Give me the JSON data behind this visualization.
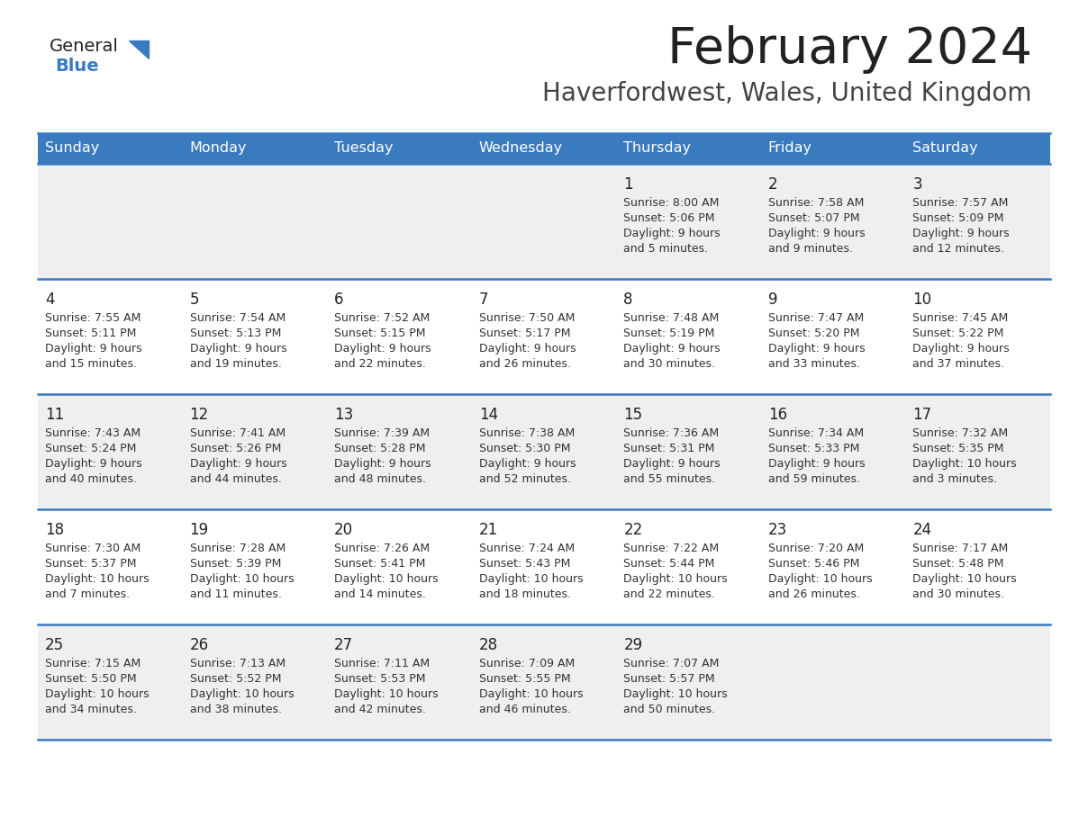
{
  "title": "February 2024",
  "subtitle": "Haverfordwest, Wales, United Kingdom",
  "days_of_week": [
    "Sunday",
    "Monday",
    "Tuesday",
    "Wednesday",
    "Thursday",
    "Friday",
    "Saturday"
  ],
  "header_bg": "#3a7bbf",
  "header_text": "#ffffff",
  "row_bg_odd": "#efefef",
  "row_bg_even": "#ffffff",
  "cell_text": "#333333",
  "day_num_color": "#222222",
  "separator_color": "#3a7bbf",
  "logo_general_color": "#222222",
  "logo_blue_color": "#3a7bbf",
  "title_color": "#222222",
  "subtitle_color": "#444444",
  "calendar_data": [
    [
      {
        "day": null,
        "sunrise": null,
        "sunset": null,
        "daylight": null
      },
      {
        "day": null,
        "sunrise": null,
        "sunset": null,
        "daylight": null
      },
      {
        "day": null,
        "sunrise": null,
        "sunset": null,
        "daylight": null
      },
      {
        "day": null,
        "sunrise": null,
        "sunset": null,
        "daylight": null
      },
      {
        "day": "1",
        "sunrise": "8:00 AM",
        "sunset": "5:06 PM",
        "daylight": "9 hours",
        "daylight2": "and 5 minutes."
      },
      {
        "day": "2",
        "sunrise": "7:58 AM",
        "sunset": "5:07 PM",
        "daylight": "9 hours",
        "daylight2": "and 9 minutes."
      },
      {
        "day": "3",
        "sunrise": "7:57 AM",
        "sunset": "5:09 PM",
        "daylight": "9 hours",
        "daylight2": "and 12 minutes."
      }
    ],
    [
      {
        "day": "4",
        "sunrise": "7:55 AM",
        "sunset": "5:11 PM",
        "daylight": "9 hours",
        "daylight2": "and 15 minutes."
      },
      {
        "day": "5",
        "sunrise": "7:54 AM",
        "sunset": "5:13 PM",
        "daylight": "9 hours",
        "daylight2": "and 19 minutes."
      },
      {
        "day": "6",
        "sunrise": "7:52 AM",
        "sunset": "5:15 PM",
        "daylight": "9 hours",
        "daylight2": "and 22 minutes."
      },
      {
        "day": "7",
        "sunrise": "7:50 AM",
        "sunset": "5:17 PM",
        "daylight": "9 hours",
        "daylight2": "and 26 minutes."
      },
      {
        "day": "8",
        "sunrise": "7:48 AM",
        "sunset": "5:19 PM",
        "daylight": "9 hours",
        "daylight2": "and 30 minutes."
      },
      {
        "day": "9",
        "sunrise": "7:47 AM",
        "sunset": "5:20 PM",
        "daylight": "9 hours",
        "daylight2": "and 33 minutes."
      },
      {
        "day": "10",
        "sunrise": "7:45 AM",
        "sunset": "5:22 PM",
        "daylight": "9 hours",
        "daylight2": "and 37 minutes."
      }
    ],
    [
      {
        "day": "11",
        "sunrise": "7:43 AM",
        "sunset": "5:24 PM",
        "daylight": "9 hours",
        "daylight2": "and 40 minutes."
      },
      {
        "day": "12",
        "sunrise": "7:41 AM",
        "sunset": "5:26 PM",
        "daylight": "9 hours",
        "daylight2": "and 44 minutes."
      },
      {
        "day": "13",
        "sunrise": "7:39 AM",
        "sunset": "5:28 PM",
        "daylight": "9 hours",
        "daylight2": "and 48 minutes."
      },
      {
        "day": "14",
        "sunrise": "7:38 AM",
        "sunset": "5:30 PM",
        "daylight": "9 hours",
        "daylight2": "and 52 minutes."
      },
      {
        "day": "15",
        "sunrise": "7:36 AM",
        "sunset": "5:31 PM",
        "daylight": "9 hours",
        "daylight2": "and 55 minutes."
      },
      {
        "day": "16",
        "sunrise": "7:34 AM",
        "sunset": "5:33 PM",
        "daylight": "9 hours",
        "daylight2": "and 59 minutes."
      },
      {
        "day": "17",
        "sunrise": "7:32 AM",
        "sunset": "5:35 PM",
        "daylight": "10 hours",
        "daylight2": "and 3 minutes."
      }
    ],
    [
      {
        "day": "18",
        "sunrise": "7:30 AM",
        "sunset": "5:37 PM",
        "daylight": "10 hours",
        "daylight2": "and 7 minutes."
      },
      {
        "day": "19",
        "sunrise": "7:28 AM",
        "sunset": "5:39 PM",
        "daylight": "10 hours",
        "daylight2": "and 11 minutes."
      },
      {
        "day": "20",
        "sunrise": "7:26 AM",
        "sunset": "5:41 PM",
        "daylight": "10 hours",
        "daylight2": "and 14 minutes."
      },
      {
        "day": "21",
        "sunrise": "7:24 AM",
        "sunset": "5:43 PM",
        "daylight": "10 hours",
        "daylight2": "and 18 minutes."
      },
      {
        "day": "22",
        "sunrise": "7:22 AM",
        "sunset": "5:44 PM",
        "daylight": "10 hours",
        "daylight2": "and 22 minutes."
      },
      {
        "day": "23",
        "sunrise": "7:20 AM",
        "sunset": "5:46 PM",
        "daylight": "10 hours",
        "daylight2": "and 26 minutes."
      },
      {
        "day": "24",
        "sunrise": "7:17 AM",
        "sunset": "5:48 PM",
        "daylight": "10 hours",
        "daylight2": "and 30 minutes."
      }
    ],
    [
      {
        "day": "25",
        "sunrise": "7:15 AM",
        "sunset": "5:50 PM",
        "daylight": "10 hours",
        "daylight2": "and 34 minutes."
      },
      {
        "day": "26",
        "sunrise": "7:13 AM",
        "sunset": "5:52 PM",
        "daylight": "10 hours",
        "daylight2": "and 38 minutes."
      },
      {
        "day": "27",
        "sunrise": "7:11 AM",
        "sunset": "5:53 PM",
        "daylight": "10 hours",
        "daylight2": "and 42 minutes."
      },
      {
        "day": "28",
        "sunrise": "7:09 AM",
        "sunset": "5:55 PM",
        "daylight": "10 hours",
        "daylight2": "and 46 minutes."
      },
      {
        "day": "29",
        "sunrise": "7:07 AM",
        "sunset": "5:57 PM",
        "daylight": "10 hours",
        "daylight2": "and 50 minutes."
      },
      {
        "day": null,
        "sunrise": null,
        "sunset": null,
        "daylight": null,
        "daylight2": null
      },
      {
        "day": null,
        "sunrise": null,
        "sunset": null,
        "daylight": null,
        "daylight2": null
      }
    ]
  ]
}
